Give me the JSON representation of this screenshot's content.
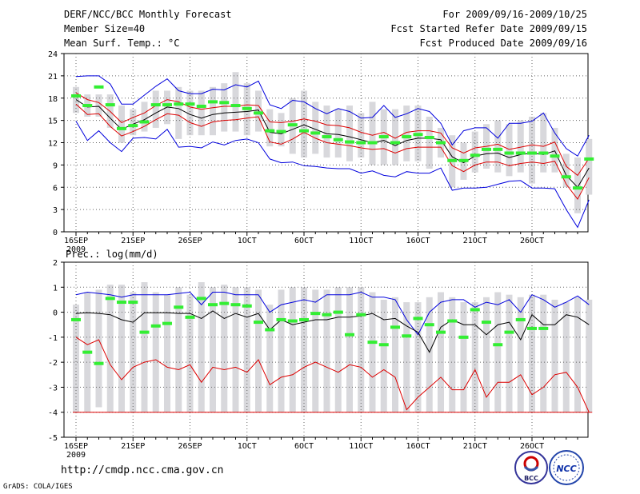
{
  "header": {
    "line1": "DERF/NCC/BCC Monthly Forecast",
    "line2": "Member Size=40",
    "line3": "Mean Surf. Temp.: °C",
    "for_range": "For 2009/09/16-2009/10/25",
    "started_refer": "Fcst Started Refer Date 2009/09/15",
    "produced": "Fcst Produced Date 2009/09/16"
  },
  "footer": {
    "url": "http://cmdp.ncc.cma.gov.cn",
    "grads": "GrADS: COLA/IGES",
    "logo_bcc": "BCC",
    "logo_ncc": "NCC"
  },
  "colors": {
    "median": "#000000",
    "envelope": "#0000dd",
    "std": "#dd0000",
    "box": "#d8d8dc",
    "analog": "#33ee33",
    "grid": "#666666"
  },
  "chart_data": [
    {
      "type": "box-ensemble",
      "title": "Mean Surf. Temp.: °C",
      "ylabel": "°C",
      "ylim": [
        0,
        24
      ],
      "yticks": [
        0,
        3,
        6,
        9,
        12,
        15,
        18,
        21,
        24
      ],
      "xticks": [
        {
          "day": 0,
          "label": "16SEP"
        },
        {
          "day": 5,
          "label": "21SEP"
        },
        {
          "day": 10,
          "label": "26SEP"
        },
        {
          "day": 15,
          "label": "1OCT"
        },
        {
          "day": 20,
          "label": "6OCT"
        },
        {
          "day": 25,
          "label": "11OCT"
        },
        {
          "day": 30,
          "label": "16OCT"
        },
        {
          "day": 35,
          "label": "21OCT"
        },
        {
          "day": 40,
          "label": "26OCT"
        }
      ],
      "year_label": "2009",
      "series": {
        "median": [
          17.8,
          16.8,
          16.9,
          15.3,
          13.8,
          14.5,
          15.1,
          16.0,
          16.8,
          16.6,
          15.8,
          15.3,
          15.8,
          16.0,
          16.1,
          16.2,
          16.4,
          13.4,
          13.2,
          13.8,
          14.4,
          13.8,
          13.2,
          13.1,
          12.8,
          12.4,
          12.0,
          12.3,
          11.6,
          12.3,
          12.6,
          12.6,
          12.4,
          10.1,
          9.3,
          10.2,
          10.5,
          10.6,
          10.0,
          10.4,
          10.6,
          10.4,
          10.9,
          7.6,
          6.0,
          8.6
        ],
        "upper": [
          20.9,
          21.0,
          21.0,
          19.9,
          17.2,
          17.2,
          18.4,
          19.6,
          20.6,
          19.0,
          18.6,
          18.6,
          19.2,
          19.1,
          19.8,
          19.5,
          20.3,
          17.1,
          16.6,
          17.7,
          17.5,
          16.6,
          15.9,
          16.6,
          16.2,
          15.3,
          15.4,
          17.0,
          15.4,
          15.9,
          16.6,
          16.2,
          14.6,
          11.7,
          13.6,
          14.0,
          14.0,
          12.6,
          14.6,
          14.6,
          14.9,
          16.0,
          13.3,
          11.2,
          10.2,
          13.0
        ],
        "lower": [
          14.9,
          12.3,
          13.6,
          12.0,
          10.8,
          12.6,
          12.7,
          12.5,
          13.8,
          11.4,
          11.5,
          11.3,
          12.1,
          11.7,
          12.3,
          12.5,
          12.0,
          9.8,
          9.3,
          9.4,
          8.9,
          8.8,
          8.6,
          8.5,
          8.5,
          7.9,
          8.2,
          7.6,
          7.4,
          8.1,
          7.9,
          7.9,
          8.6,
          5.6,
          5.9,
          5.9,
          6.0,
          6.4,
          6.8,
          6.9,
          5.9,
          5.9,
          5.8,
          3.0,
          0.6,
          4.3
        ],
        "std_hi": [
          18.7,
          17.8,
          17.4,
          16.2,
          14.7,
          15.4,
          16.0,
          17.0,
          17.8,
          17.5,
          16.8,
          16.5,
          16.7,
          16.9,
          16.9,
          17.1,
          17.0,
          14.8,
          14.7,
          14.9,
          15.2,
          14.9,
          14.4,
          14.3,
          14.0,
          13.4,
          13.0,
          13.4,
          12.6,
          13.4,
          13.6,
          13.6,
          13.3,
          11.3,
          10.6,
          11.3,
          11.5,
          11.8,
          11.1,
          11.4,
          11.7,
          11.5,
          12.1,
          8.8,
          7.6,
          9.9
        ],
        "std_lo": [
          17.2,
          15.8,
          15.9,
          14.2,
          12.9,
          13.5,
          14.2,
          15.1,
          15.9,
          15.7,
          14.7,
          14.2,
          14.8,
          15.0,
          15.1,
          15.3,
          15.5,
          12.1,
          11.8,
          12.5,
          13.4,
          12.6,
          12.0,
          11.8,
          11.6,
          11.3,
          11.1,
          11.2,
          10.6,
          11.2,
          11.4,
          11.4,
          11.4,
          8.9,
          8.1,
          9.0,
          9.4,
          9.4,
          8.9,
          9.2,
          9.4,
          9.2,
          9.5,
          6.4,
          4.4,
          7.3
        ],
        "analog": [
          18.3,
          17.0,
          19.5,
          17.1,
          13.9,
          14.3,
          14.8,
          17.1,
          17.1,
          17.2,
          17.2,
          16.9,
          17.5,
          17.4,
          17.0,
          16.6,
          16.0,
          13.6,
          13.5,
          14.4,
          13.6,
          13.3,
          12.8,
          12.4,
          12.1,
          12.0,
          12.0,
          12.8,
          12.0,
          12.8,
          13.1,
          12.7,
          12.0,
          9.6,
          9.6,
          10.3,
          11.1,
          11.1,
          10.6,
          10.6,
          10.6,
          10.6,
          10.2,
          7.4,
          5.9,
          9.8
        ],
        "box_hi": [
          19.5,
          18.5,
          18.5,
          18.5,
          17.0,
          16.5,
          17.5,
          19.0,
          19.0,
          19.5,
          19.0,
          19.0,
          19.5,
          20.0,
          21.5,
          20.0,
          19.0,
          16.5,
          16.0,
          18.0,
          19.0,
          17.5,
          17.0,
          16.5,
          17.0,
          16.0,
          17.5,
          16.5,
          16.5,
          17.0,
          17.0,
          15.5,
          14.0,
          13.0,
          12.0,
          13.5,
          14.5,
          15.0,
          14.5,
          15.0,
          15.5,
          16.0,
          14.0,
          10.5,
          10.0,
          12.5
        ],
        "box_lo": [
          16.0,
          15.5,
          15.5,
          14.0,
          12.0,
          13.0,
          13.5,
          14.0,
          14.5,
          12.5,
          13.0,
          13.0,
          13.0,
          13.5,
          13.5,
          13.0,
          13.5,
          11.5,
          11.5,
          10.5,
          10.0,
          10.5,
          10.0,
          10.0,
          9.5,
          10.0,
          9.0,
          9.0,
          9.0,
          9.5,
          9.5,
          8.5,
          10.0,
          6.0,
          7.0,
          8.0,
          8.5,
          8.0,
          7.5,
          8.0,
          6.5,
          8.0,
          8.0,
          6.0,
          2.5,
          5.0
        ]
      }
    },
    {
      "type": "box-ensemble",
      "title": "Prec.: log(mm/d)",
      "ylabel": "log(mm/d)",
      "ylim": [
        -5,
        2
      ],
      "yticks": [
        -5,
        -4,
        -3,
        -2,
        -1,
        0,
        1,
        2
      ],
      "xticks": [
        {
          "day": 0,
          "label": "16SEP"
        },
        {
          "day": 5,
          "label": "21SEP"
        },
        {
          "day": 10,
          "label": "26SEP"
        },
        {
          "day": 15,
          "label": "1OCT"
        },
        {
          "day": 20,
          "label": "6OCT"
        },
        {
          "day": 25,
          "label": "11OCT"
        },
        {
          "day": 30,
          "label": "16OCT"
        },
        {
          "day": 35,
          "label": "21OCT"
        },
        {
          "day": 40,
          "label": "26OCT"
        }
      ],
      "year_label": "2009",
      "series": {
        "median": [
          -0.05,
          -0.02,
          -0.05,
          -0.1,
          -0.3,
          -0.4,
          -0.02,
          -0.02,
          -0.02,
          -0.05,
          -0.05,
          -0.25,
          0.05,
          -0.25,
          -0.05,
          -0.2,
          -0.05,
          -0.7,
          -0.3,
          -0.5,
          -0.4,
          -0.3,
          -0.3,
          -0.2,
          -0.2,
          -0.15,
          -0.05,
          -0.3,
          -0.25,
          -0.55,
          -0.8,
          -1.6,
          -0.6,
          -0.3,
          -0.5,
          -0.5,
          -0.9,
          -0.5,
          -0.4,
          -1.1,
          -0.1,
          -0.5,
          -0.5,
          -0.1,
          -0.2,
          -0.5
        ],
        "upper": [
          0.7,
          0.8,
          0.75,
          0.7,
          0.6,
          0.7,
          0.7,
          0.7,
          0.7,
          0.75,
          0.8,
          0.3,
          0.8,
          0.8,
          0.7,
          0.7,
          0.7,
          0.0,
          0.3,
          0.4,
          0.5,
          0.4,
          0.7,
          0.7,
          0.7,
          0.8,
          0.6,
          0.6,
          0.5,
          -0.3,
          -0.9,
          0.0,
          0.4,
          0.5,
          0.5,
          0.2,
          0.4,
          0.3,
          0.5,
          0.0,
          0.7,
          0.5,
          0.2,
          0.4,
          0.65,
          0.3
        ],
        "lower": [
          -1.0,
          -1.3,
          -1.1,
          -2.1,
          -2.7,
          -2.2,
          -2.0,
          -1.9,
          -2.2,
          -2.3,
          -2.1,
          -2.8,
          -2.2,
          -2.3,
          -2.2,
          -2.4,
          -1.9,
          -2.9,
          -2.6,
          -2.5,
          -2.2,
          -2.0,
          -2.2,
          -2.4,
          -2.1,
          -2.2,
          -2.6,
          -2.3,
          -2.6,
          -3.9,
          -3.4,
          -3.0,
          -2.6,
          -3.1,
          -3.1,
          -2.3,
          -3.4,
          -2.8,
          -2.8,
          -2.5,
          -3.3,
          -3.0,
          -2.5,
          -2.4,
          -3.0,
          -4.0
        ],
        "analog": [
          -0.3,
          -1.6,
          -2.05,
          0.55,
          0.4,
          0.4,
          -0.8,
          -0.55,
          -0.45,
          0.2,
          -0.2,
          0.55,
          0.3,
          0.35,
          0.3,
          0.25,
          -0.4,
          -0.7,
          -0.3,
          -0.35,
          -0.3,
          -0.05,
          -0.1,
          0.0,
          -0.9,
          -0.1,
          -1.2,
          -1.3,
          -0.6,
          -0.95,
          -0.25,
          -0.5,
          -0.8,
          -0.35,
          -1.0,
          0.1,
          -0.4,
          -1.3,
          -0.8,
          -0.3,
          -0.65,
          -0.65,
          0.0,
          0.0,
          0.0,
          0.0
        ],
        "box_hi": [
          0.3,
          0.8,
          0.9,
          1.1,
          1.1,
          0.8,
          1.2,
          0.8,
          0.7,
          1.0,
          0.7,
          1.2,
          1.0,
          1.1,
          1.0,
          1.0,
          0.9,
          0.3,
          0.9,
          1.0,
          1.0,
          0.9,
          0.9,
          1.0,
          1.0,
          1.0,
          0.8,
          0.5,
          0.6,
          0.4,
          0.4,
          0.6,
          0.8,
          0.6,
          0.4,
          0.4,
          0.6,
          0.8,
          0.7,
          0.6,
          0.7,
          0.7,
          0.5,
          0.4,
          0.6,
          0.5
        ],
        "box_lo": [
          -4.0,
          -4.0,
          -3.8,
          -4.0,
          -4.0,
          -4.0,
          -4.0,
          -4.0,
          -4.0,
          -4.0,
          -4.0,
          -4.0,
          -4.0,
          -4.0,
          -4.0,
          -4.0,
          -4.0,
          -4.0,
          -4.0,
          -4.0,
          -4.0,
          -4.0,
          -4.0,
          -4.0,
          -4.0,
          -4.0,
          -4.0,
          -4.0,
          -4.0,
          -4.0,
          -4.0,
          -4.0,
          -4.0,
          -4.0,
          -4.0,
          -4.0,
          -4.0,
          -4.0,
          -4.0,
          -4.0,
          -4.0,
          -4.0,
          -4.0,
          -4.0,
          -4.0,
          -4.0
        ],
        "floor": -4.0
      }
    }
  ]
}
